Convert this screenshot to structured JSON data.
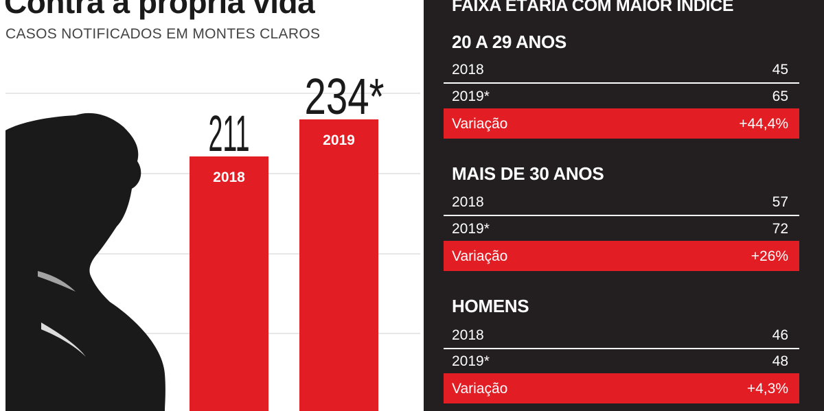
{
  "title": "Contra a própria vida",
  "subtitle": "CASOS NOTIFICADOS EM MONTES CLAROS",
  "colors": {
    "bar": "#e21d24",
    "panel": "#231f20",
    "text": "#231f20"
  },
  "chart_data": {
    "type": "bar",
    "categories": [
      "2018",
      "2019"
    ],
    "values": [
      211,
      234
    ],
    "value_labels": [
      "211",
      "234*"
    ],
    "grid": true,
    "ylim": [
      0,
      300
    ]
  },
  "panel": {
    "heading": "FAIXA ETÁRIA COM MAIOR ÍNDICE",
    "groups": [
      {
        "title": "20 A 29 ANOS",
        "rows": [
          {
            "label": "2018",
            "value": "45"
          },
          {
            "label": "2019*",
            "value": "65"
          }
        ],
        "variation": {
          "label": "Variação",
          "value": "+44,4%"
        }
      },
      {
        "title": "MAIS DE 30 ANOS",
        "rows": [
          {
            "label": "2018",
            "value": "57"
          },
          {
            "label": "2019*",
            "value": "72"
          }
        ],
        "variation": {
          "label": "Variação",
          "value": "+26%"
        }
      },
      {
        "title": "HOMENS",
        "rows": [
          {
            "label": "2018",
            "value": "46"
          },
          {
            "label": "2019*",
            "value": "48"
          }
        ],
        "variation": {
          "label": "Variação",
          "value": "+4,3%"
        }
      }
    ]
  }
}
